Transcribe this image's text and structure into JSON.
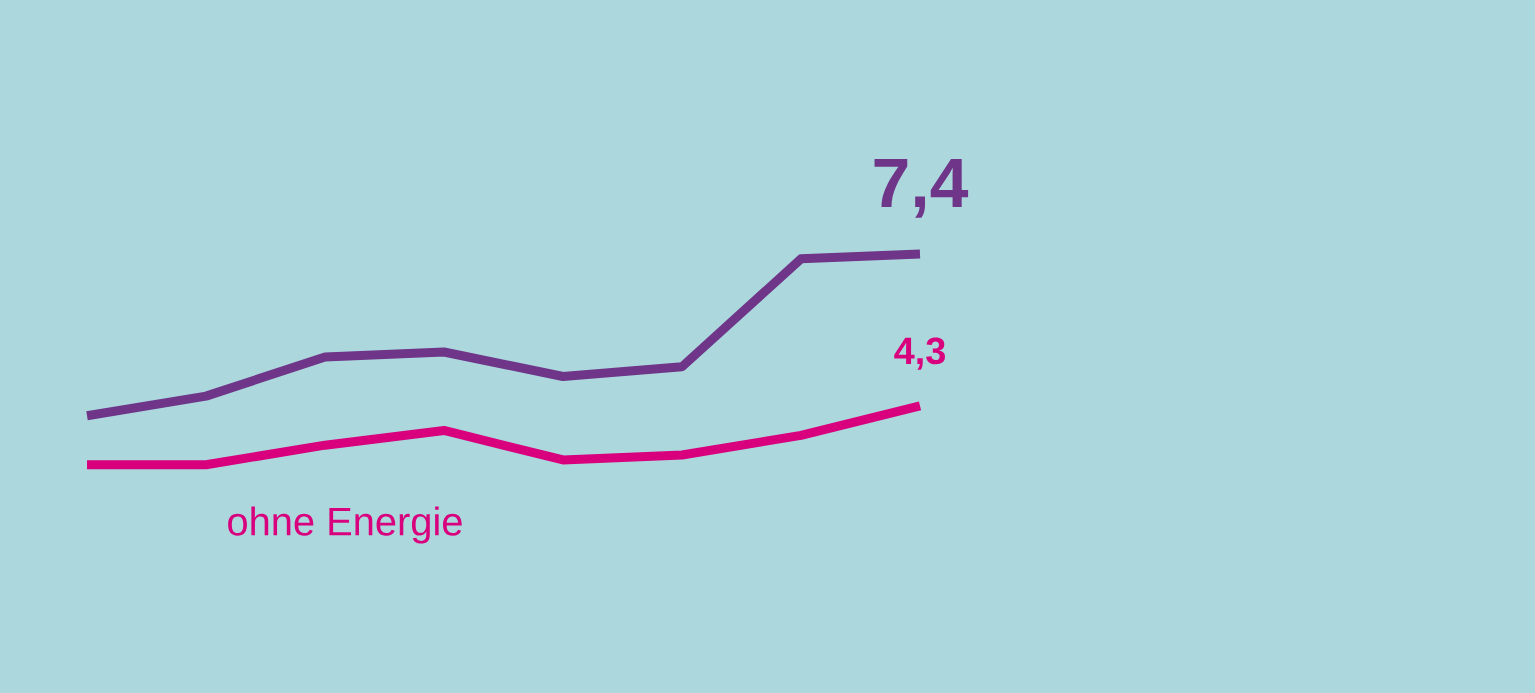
{
  "chart_data": {
    "type": "line",
    "categories": [
      null,
      null,
      null,
      null,
      null,
      null,
      null,
      null
    ],
    "series": [
      {
        "color": "#6e3589",
        "values": [
          4.1,
          4.5,
          5.3,
          5.4,
          4.9,
          5.1,
          7.3,
          7.4
        ],
        "value_labels": [
          null,
          null,
          null,
          null,
          null,
          null,
          null,
          "7,4"
        ]
      },
      {
        "name": "ohne Energie",
        "color": "#d9007e",
        "values": [
          3.1,
          3.1,
          3.5,
          3.8,
          3.2,
          3.3,
          3.7,
          4.3
        ],
        "value_labels": [
          null,
          null,
          null,
          null,
          null,
          null,
          null,
          "4,3"
        ]
      }
    ]
  }
}
